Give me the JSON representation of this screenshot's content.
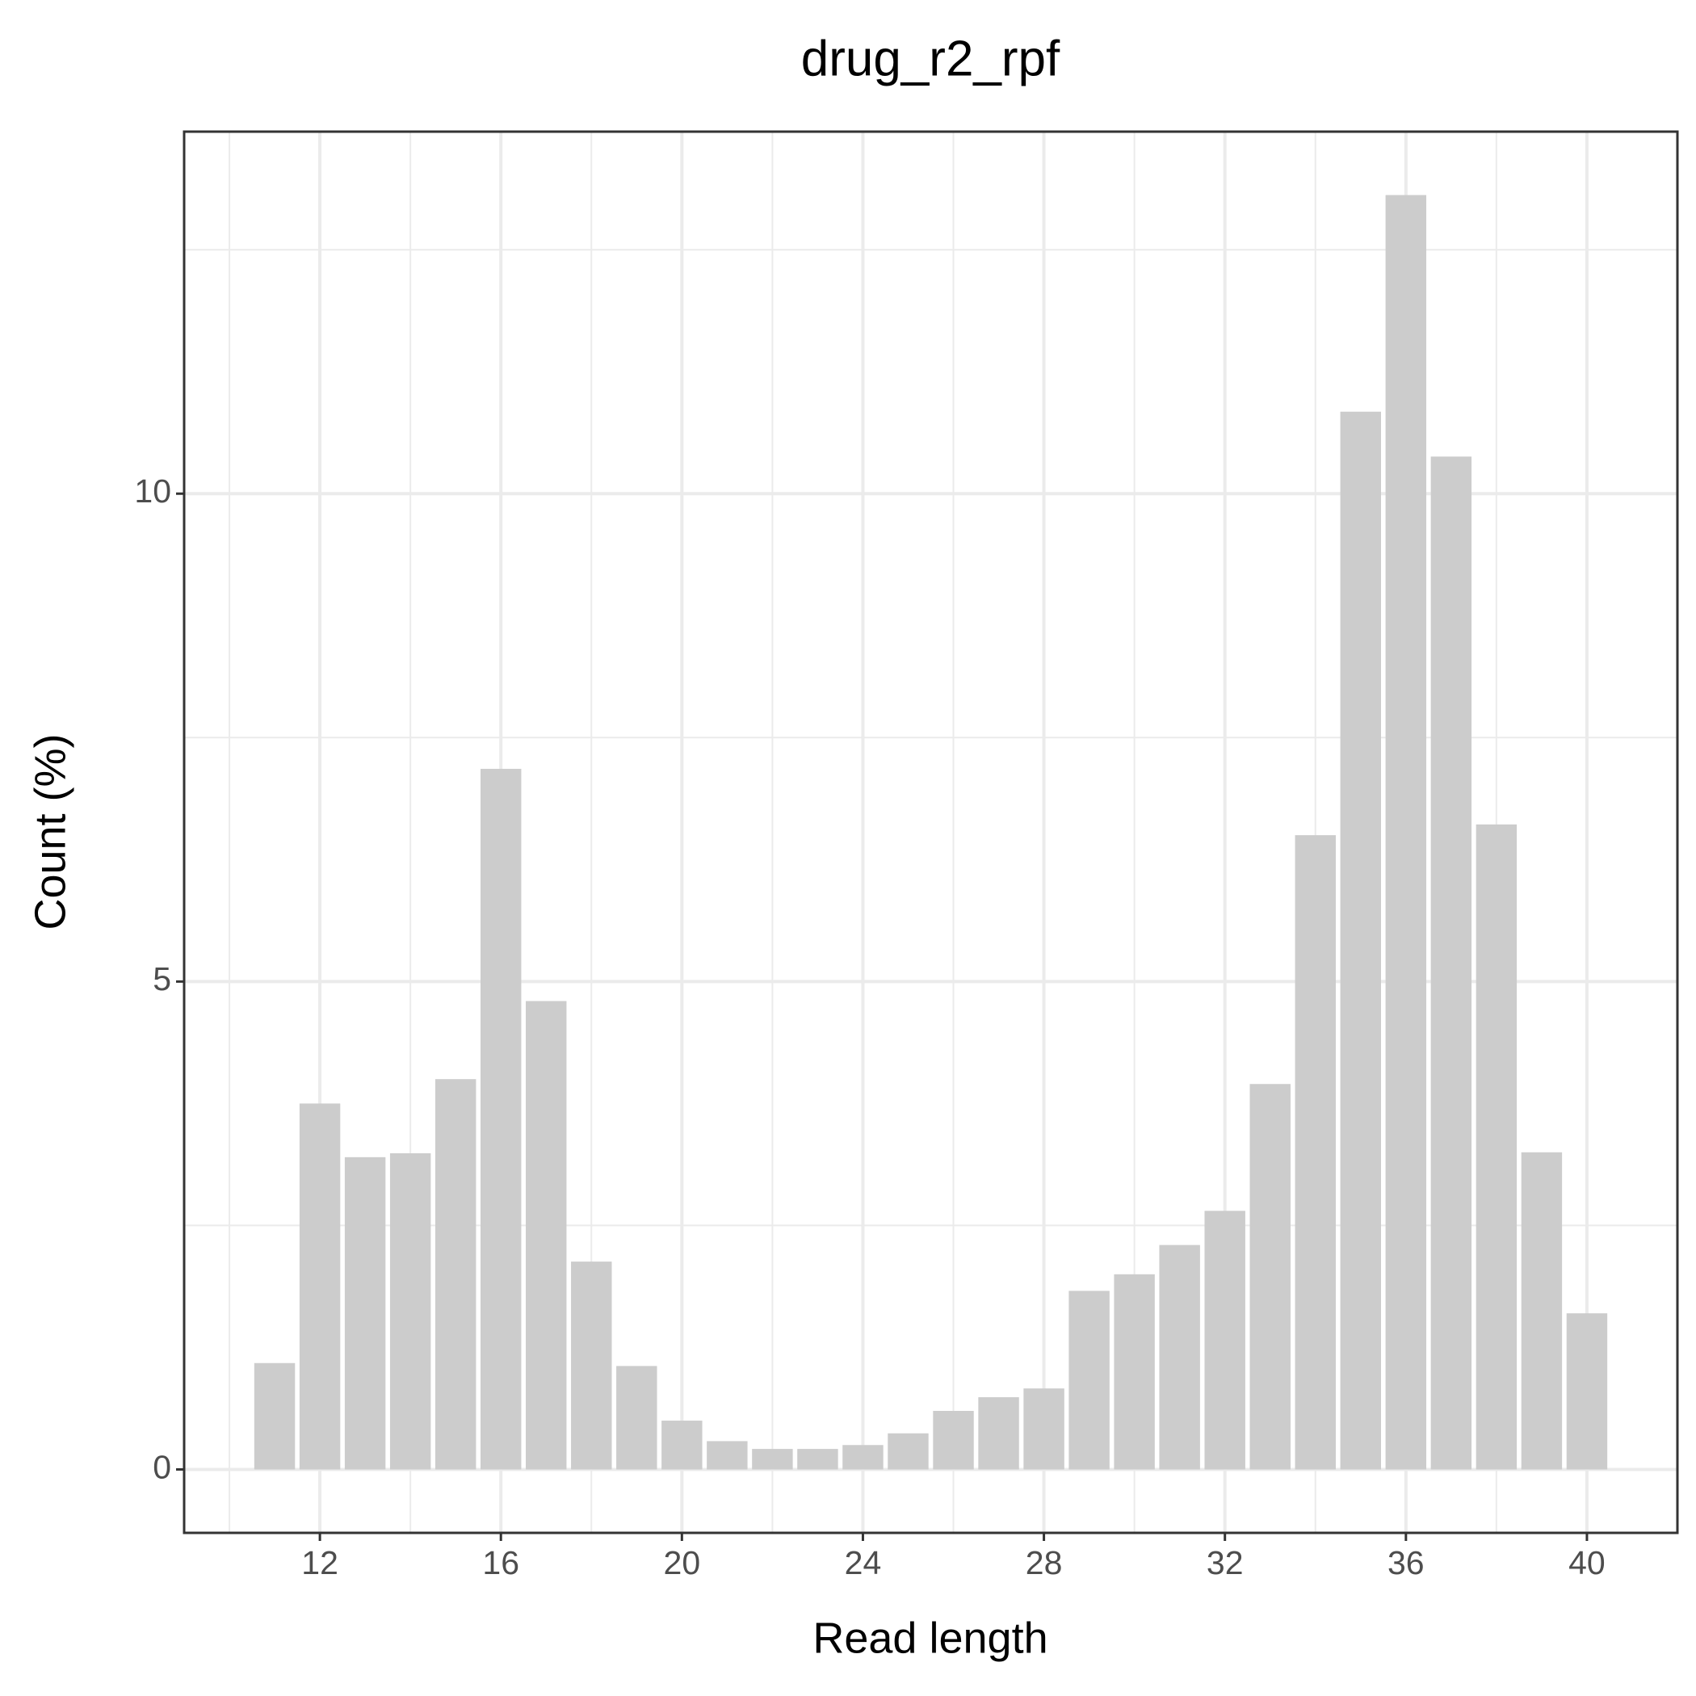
{
  "chart_data": {
    "type": "bar",
    "title": "drug_r2_rpf",
    "x_label": "Read length",
    "y_label": "Count (%)",
    "x": [
      11,
      12,
      13,
      14,
      15,
      16,
      17,
      18,
      19,
      20,
      21,
      22,
      23,
      24,
      25,
      26,
      27,
      28,
      29,
      30,
      31,
      32,
      33,
      34,
      35,
      36,
      37,
      38,
      39,
      40
    ],
    "values": [
      1.09,
      3.75,
      3.2,
      3.24,
      4.0,
      7.18,
      4.8,
      2.13,
      1.06,
      0.5,
      0.29,
      0.21,
      0.21,
      0.25,
      0.37,
      0.6,
      0.74,
      0.83,
      1.83,
      2.0,
      2.3,
      2.65,
      3.95,
      6.5,
      10.84,
      13.06,
      10.38,
      6.61,
      3.25,
      1.6
    ],
    "color": "#cccccc",
    "xlim": [
      9,
      42
    ],
    "xticks": [
      12,
      16,
      20,
      24,
      28,
      32,
      36,
      40
    ],
    "ylim": [
      -0.65,
      13.71
    ],
    "yticks": [
      0,
      5,
      10
    ],
    "grid": true
  }
}
